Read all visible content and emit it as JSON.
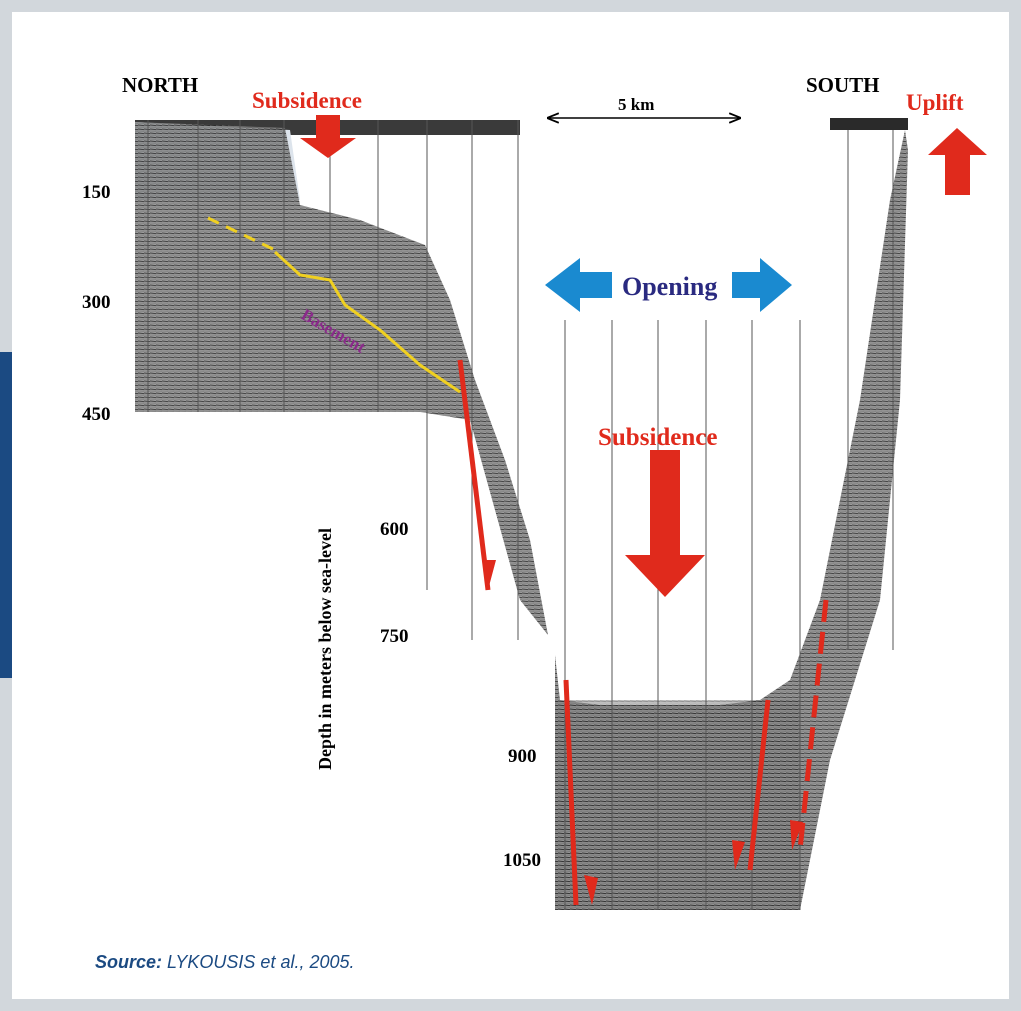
{
  "labels": {
    "north": "NORTH",
    "south": "SOUTH",
    "subsidence_north": "Subsidence",
    "uplift": "Uplift",
    "scale": "5 km",
    "opening": "Opening",
    "basement": "Basement",
    "subsidence_basin": "Subsidence"
  },
  "depth_axis": {
    "title": "Depth in meters below sea-level",
    "ticks": [
      150,
      300,
      450,
      600,
      750,
      900,
      1050
    ]
  },
  "source": {
    "label": "Source:",
    "text": "LYKOUSIS et al., 2005."
  }
}
